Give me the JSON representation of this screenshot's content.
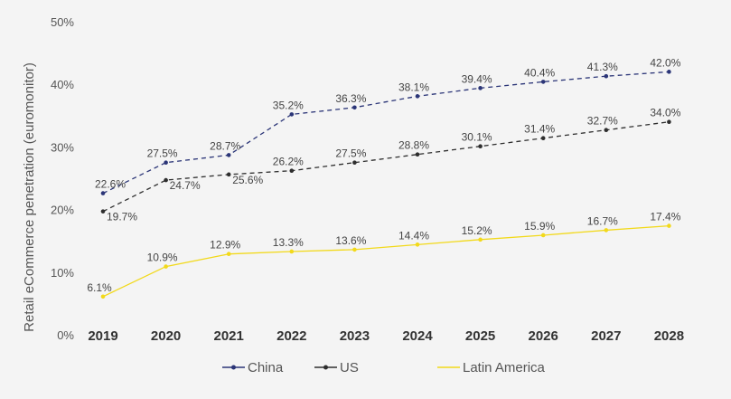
{
  "chart_data": {
    "type": "line",
    "title": "",
    "xlabel": "",
    "ylabel": "Retail eCommerce penetration (euromonitor)",
    "ylim": [
      0,
      50
    ],
    "y_ticks": [
      "0%",
      "10%",
      "20%",
      "30%",
      "40%",
      "50%"
    ],
    "y_tick_values": [
      0,
      10,
      20,
      30,
      40,
      50
    ],
    "categories": [
      "2019",
      "2020",
      "2021",
      "2022",
      "2023",
      "2024",
      "2025",
      "2026",
      "2027",
      "2028"
    ],
    "grid": false,
    "legend_position": "bottom-center",
    "series": [
      {
        "name": "China",
        "color": "#2b3577",
        "dashed": true,
        "values": [
          22.6,
          27.5,
          28.7,
          35.2,
          36.3,
          38.1,
          39.4,
          40.4,
          41.3,
          42.0
        ],
        "labels": [
          "22.6%",
          "27.5%",
          "28.7%",
          "35.2%",
          "36.3%",
          "38.1%",
          "39.4%",
          "40.4%",
          "41.3%",
          "42.0%"
        ]
      },
      {
        "name": "US",
        "color": "#2e2e2e",
        "dashed": true,
        "values": [
          19.7,
          24.7,
          25.6,
          26.2,
          27.5,
          28.8,
          30.1,
          31.4,
          32.7,
          34.0
        ],
        "labels": [
          "19.7%",
          "24.7%",
          "25.6%",
          "26.2%",
          "27.5%",
          "28.8%",
          "30.1%",
          "31.4%",
          "32.7%",
          "34.0%"
        ]
      },
      {
        "name": "Latin America",
        "color": "#f2d91a",
        "dashed": false,
        "values": [
          6.1,
          10.9,
          12.9,
          13.3,
          13.6,
          14.4,
          15.2,
          15.9,
          16.7,
          17.4
        ],
        "labels": [
          "6.1%",
          "10.9%",
          "12.9%",
          "13.3%",
          "13.6%",
          "14.4%",
          "15.2%",
          "15.9%",
          "16.7%",
          "17.4%"
        ]
      }
    ]
  }
}
